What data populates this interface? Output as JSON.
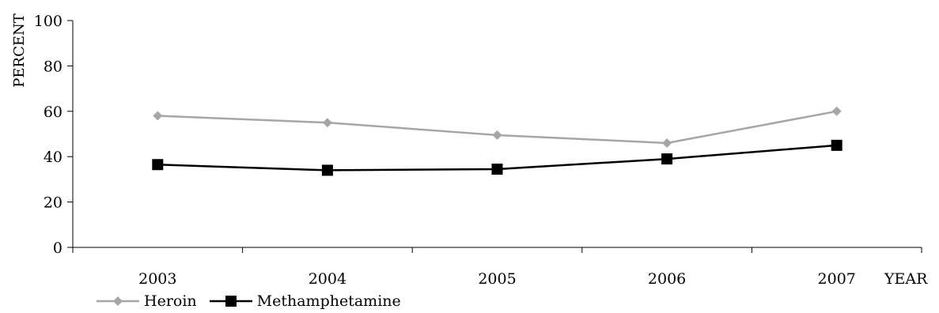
{
  "chart_data": {
    "type": "line",
    "title": "",
    "xlabel": "YEAR",
    "ylabel": "PERCENT",
    "categories": [
      "2003",
      "2004",
      "2005",
      "2006",
      "2007"
    ],
    "ylim": [
      0,
      100
    ],
    "yticks": [
      0,
      20,
      40,
      60,
      80,
      100
    ],
    "grid": false,
    "legend_position": "bottom-left",
    "series": [
      {
        "name": "Heroin",
        "values": [
          58,
          55,
          49.5,
          46,
          60
        ],
        "color": "#A6A6A6",
        "marker": "diamond"
      },
      {
        "name": "Methamphetamine",
        "values": [
          36.5,
          34,
          34.5,
          39,
          45
        ],
        "color": "#000000",
        "marker": "square"
      }
    ]
  }
}
